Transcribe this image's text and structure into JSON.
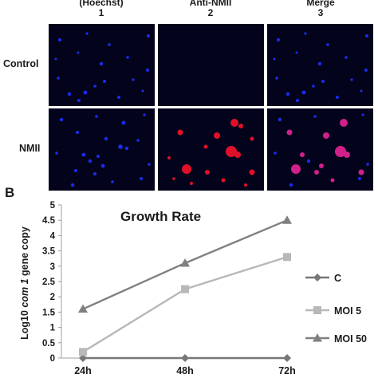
{
  "panel_a": {
    "column_headers": [
      {
        "title": "(Hoechst)",
        "number": "1"
      },
      {
        "title": "Anti-NMII",
        "number": "2"
      },
      {
        "title": "Merge",
        "number": "3"
      }
    ],
    "row_labels": [
      "Control",
      "NMII"
    ]
  },
  "panel_b": {
    "letter": "B"
  },
  "colors": {
    "hoechst_blue": "#1a2cf0",
    "nmii_red": "#e0102a",
    "merge_magenta": "#d0208a",
    "panel_background": "#03041c",
    "series_c": "#777777",
    "series_moi5": "#b8b8b8",
    "series_moi50": "#808080"
  },
  "chart_data": {
    "type": "line",
    "title": "Growth Rate",
    "xlabel": "",
    "ylabel_parts": [
      "Log10 ",
      "com 1",
      " gene copy"
    ],
    "categories": [
      "24h",
      "48h",
      "72h"
    ],
    "ylim": [
      0,
      5
    ],
    "yticks": [
      "0",
      "0.5",
      "1",
      "1.5",
      "2",
      "2.5",
      "3",
      "3.5",
      "4",
      "4.5",
      "5"
    ],
    "grid": false,
    "legend_position": "right",
    "series": [
      {
        "name": "C",
        "marker": "diamond",
        "values": [
          0,
          0,
          0
        ]
      },
      {
        "name": "MOI 5",
        "marker": "square",
        "values": [
          0.2,
          2.25,
          3.3
        ]
      },
      {
        "name": "MOI 50",
        "marker": "triangle",
        "values": [
          1.6,
          3.1,
          4.5
        ]
      }
    ]
  }
}
